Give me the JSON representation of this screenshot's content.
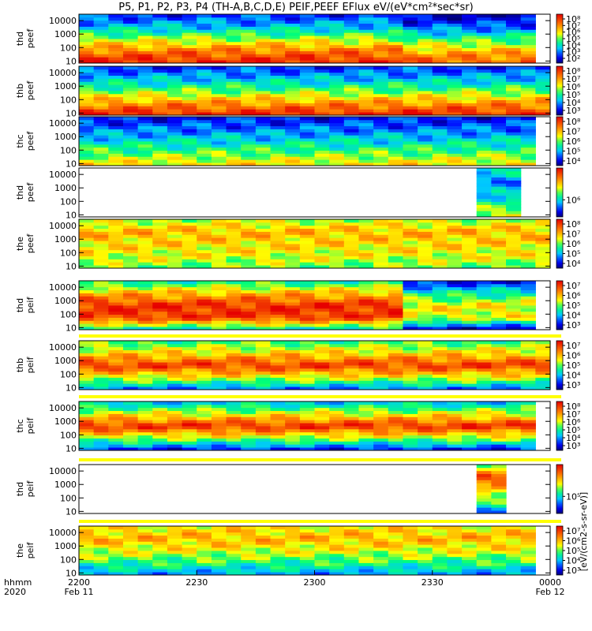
{
  "title": "P5, P1, P2, P3, P4 (TH-A,B,C,D,E) PEIF,PEEF EFlux eV/(eV*cm²*sec*sr)",
  "colorbar_label": "[eV/(cm2-s-sr-eV)]",
  "colors": {
    "high": "#ff0000",
    "mid": "#ffff00",
    "low": "#0000ff",
    "missing": "#ffffff",
    "divider": "#ffff00"
  },
  "chart_data": {
    "type": "heatmap",
    "title": "P5, P1, P2, P3, P4 (TH-A,B,C,D,E) PEIF,PEEF EFlux eV/(eV*cm²*sec*sr)",
    "xlabel": "hhmm 2020",
    "x_axis": {
      "corner_labels": [
        "hhmm",
        "2020"
      ],
      "ticks": [
        {
          "t": 0,
          "label": "2200",
          "date": "Feb 11"
        },
        {
          "t": 30,
          "label": "2230",
          "date": ""
        },
        {
          "t": 60,
          "label": "2300",
          "date": ""
        },
        {
          "t": 90,
          "label": "2330",
          "date": ""
        },
        {
          "t": 120,
          "label": "0000",
          "date": "Feb 12"
        }
      ],
      "range_minutes": [
        0,
        120
      ]
    },
    "y_axis": {
      "unit": "eV",
      "scale": "log",
      "range": [
        7,
        30000
      ],
      "ticks": [
        "10",
        "100",
        "1000",
        "10000"
      ]
    },
    "panels": [
      {
        "probe": "thd",
        "species": "peef",
        "label": [
          "thd",
          "peef"
        ],
        "t_start": 0,
        "t_end": 116,
        "level": [
          0.95,
          0.8,
          0.55,
          0.3,
          0.15
        ],
        "shift": {
          "t": 84,
          "delta": -0.1
        },
        "cb_ticks": [
          "10²",
          "10³",
          "10⁴",
          "10⁵",
          "10⁶",
          "10⁷",
          "10⁸"
        ]
      },
      {
        "probe": "thb",
        "species": "peef",
        "label": [
          "thb",
          "peef"
        ],
        "t_start": 0,
        "t_end": 120,
        "level": [
          0.95,
          0.75,
          0.5,
          0.3,
          0.15
        ],
        "cb_ticks": [
          "10³",
          "10⁴",
          "10⁵",
          "10⁶",
          "10⁷",
          "10⁸"
        ]
      },
      {
        "probe": "thc",
        "species": "peef",
        "label": [
          "thc",
          "peef"
        ],
        "t_start": 0,
        "t_end": 115,
        "level": [
          0.65,
          0.5,
          0.35,
          0.22,
          0.12
        ],
        "cb_ticks": [
          "10⁴",
          "10⁵",
          "10⁶",
          "10⁷",
          "10⁸"
        ]
      },
      {
        "probe": "thd",
        "species": "peef",
        "label": [
          "thd",
          "peef"
        ],
        "t_start": 102,
        "t_end": 113,
        "level": [
          0.6,
          0.45,
          0.3,
          0.25,
          0.4
        ],
        "cb_ticks": [
          "10⁶"
        ]
      },
      {
        "probe": "the",
        "species": "peef",
        "label": [
          "the",
          "peef"
        ],
        "t_start": 0,
        "t_end": 120,
        "level": [
          0.5,
          0.6,
          0.65,
          0.7,
          0.55
        ],
        "cb_ticks": [
          "10⁴",
          "10⁵",
          "10⁶",
          "10⁷",
          "10⁸"
        ]
      },
      {
        "probe": "thd",
        "species": "peif",
        "label": [
          "thd",
          "peif"
        ],
        "t_start": 0,
        "t_end": 116,
        "level": [
          0.35,
          0.9,
          0.92,
          0.7,
          0.4
        ],
        "shift": {
          "t": 84,
          "delta": -0.3
        },
        "cb_ticks": [
          "10³",
          "10⁴",
          "10⁵",
          "10⁶",
          "10⁷"
        ]
      },
      {
        "probe": "thb",
        "species": "peif",
        "label": [
          "thb",
          "peif"
        ],
        "t_start": 0,
        "t_end": 119,
        "level": [
          0.2,
          0.6,
          0.9,
          0.65,
          0.45
        ],
        "cb_ticks": [
          "10³",
          "10⁴",
          "10⁵",
          "10⁶",
          "10⁷"
        ]
      },
      {
        "probe": "thc",
        "species": "peif",
        "label": [
          "thc",
          "peif"
        ],
        "t_start": 0,
        "t_end": 115,
        "level": [
          0.1,
          0.55,
          0.92,
          0.6,
          0.3
        ],
        "cb_ticks": [
          "10³",
          "10⁴",
          "10⁵",
          "10⁶",
          "10⁷",
          "10⁸"
        ]
      },
      {
        "probe": "thd",
        "species": "peif",
        "label": [
          "thd",
          "peif"
        ],
        "t_start": 100,
        "t_end": 109,
        "level": [
          0.25,
          0.45,
          0.7,
          0.85,
          0.55
        ],
        "cb_ticks": [
          "10⁵"
        ]
      },
      {
        "probe": "the",
        "species": "peif",
        "label": [
          "the",
          "peif"
        ],
        "t_start": 0,
        "t_end": 117,
        "level": [
          0.25,
          0.45,
          0.6,
          0.7,
          0.62
        ],
        "cb_ticks": [
          "10³",
          "10⁴",
          "10⁵",
          "10⁶",
          "10⁷"
        ]
      }
    ]
  }
}
